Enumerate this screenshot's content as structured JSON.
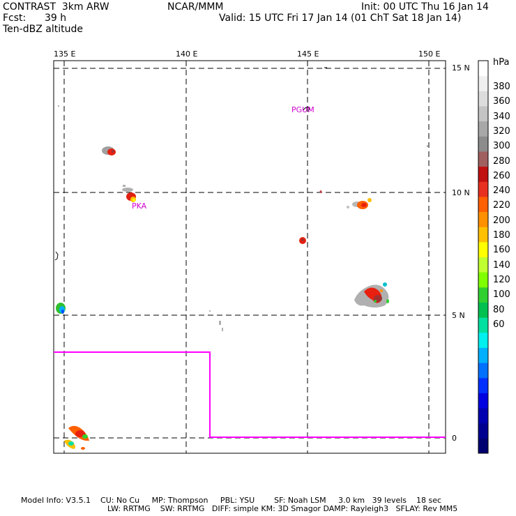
{
  "header": {
    "model": "CONTRAST  3km ARW",
    "org": "NCAR/MMM",
    "init": "Init: 00 UTC Thu 16 Jan 14",
    "fcst_label": "Fcst:",
    "fcst_value": "39 h",
    "valid": "Valid: 15 UTC Fri 17 Jan 14 (01 ChT Sat 18 Jan 14)",
    "field": "Ten-dBZ altitude"
  },
  "map": {
    "lon_labels": [
      "135 E",
      "140 E",
      "145 E",
      "150 E"
    ],
    "lat_labels": [
      "15 N",
      "10 N",
      "5 N",
      "0"
    ],
    "place_labels": [
      "PGUM",
      "PKA"
    ],
    "place_label_color": "#d000d0",
    "boundary_color": "#ff00ff"
  },
  "colorbar": {
    "unit": "hPa",
    "labels": [
      "380",
      "360",
      "340",
      "320",
      "300",
      "280",
      "260",
      "240",
      "220",
      "200",
      "180",
      "160",
      "140",
      "120",
      "100",
      "80",
      "60"
    ],
    "colors": [
      "#ffffff",
      "#f0f0f0",
      "#dcdcdc",
      "#c4c4c4",
      "#a8a8a8",
      "#8c8c8c",
      "#a06060",
      "#c01010",
      "#e83020",
      "#ff6000",
      "#ff9000",
      "#ffc000",
      "#ffff00",
      "#c0ff30",
      "#80ff00",
      "#30d030",
      "#00c050",
      "#00e0a0",
      "#00f0f0",
      "#00b0ff",
      "#0070ff",
      "#0030ff",
      "#0000e0",
      "#0000b0",
      "#000090",
      "#000070"
    ]
  },
  "footer": {
    "line1": "Model Info: V3.5.1    CU: No Cu     MP: Thompson     PBL: YSU        SF: Noah LSM     3.0 km   39 levels    18 sec",
    "line2": "LW: RRTMG    SW: RRTMG   DIFF: simple KM: 3D Smagor DAMP: Rayleigh3   SFLAY: Rev MM5"
  }
}
